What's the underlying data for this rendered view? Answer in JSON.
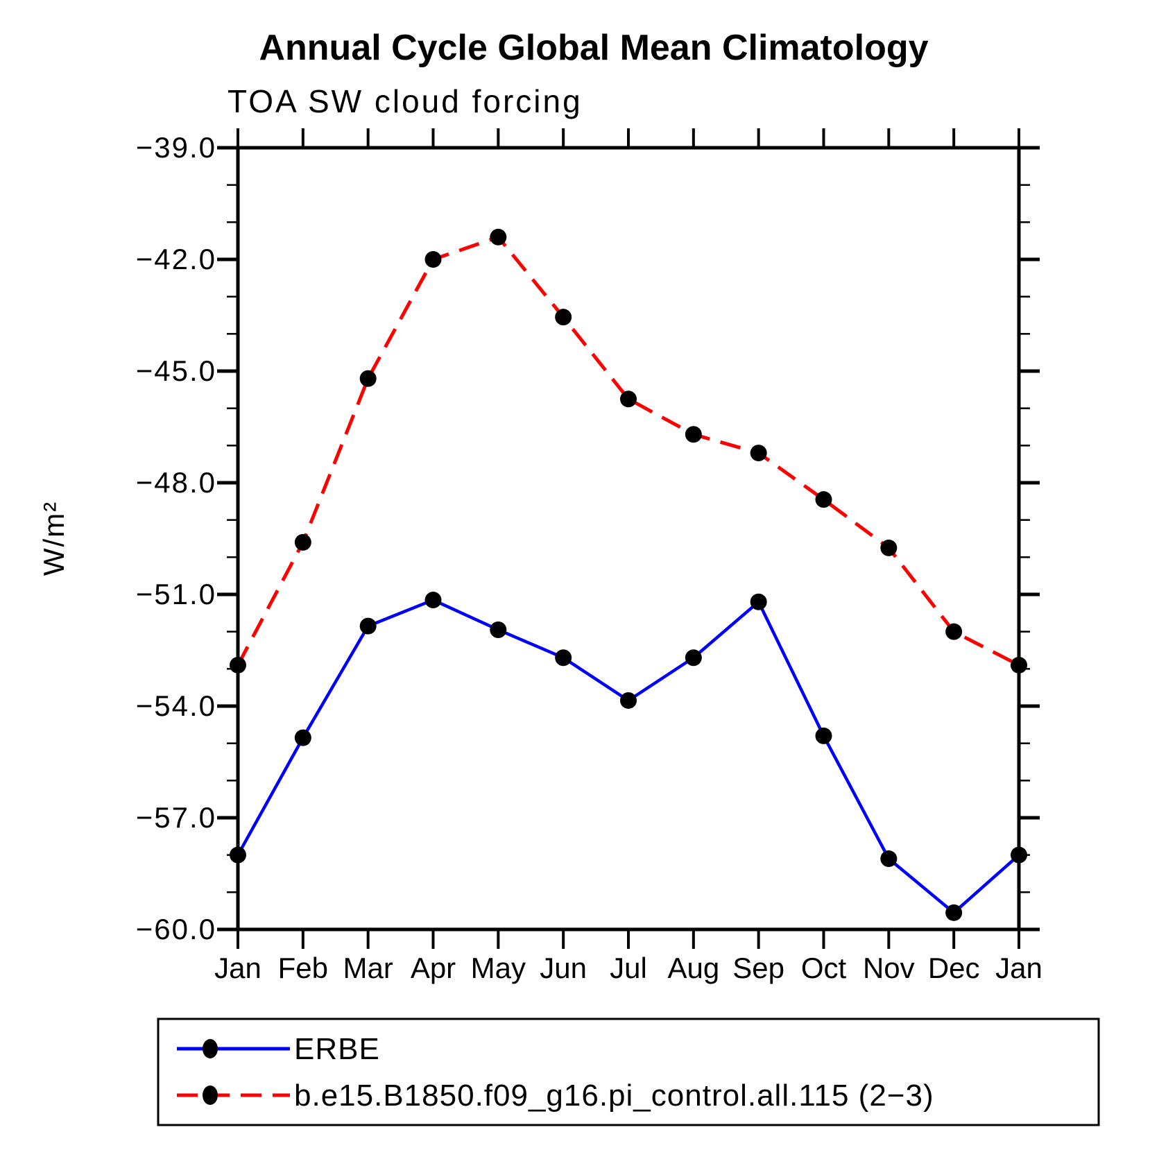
{
  "page": {
    "background": "#ffffff"
  },
  "header": {
    "title": "Annual Cycle Global Mean Climatology",
    "subtitle": "TOA SW cloud forcing"
  },
  "chart_data": {
    "type": "line",
    "title": "Annual Cycle Global Mean Climatology",
    "subtitle": "TOA SW cloud forcing",
    "xlabel": "",
    "ylabel": "W/m²",
    "x_categories": [
      "Jan",
      "Feb",
      "Mar",
      "Apr",
      "May",
      "Jun",
      "Jul",
      "Aug",
      "Sep",
      "Oct",
      "Nov",
      "Dec",
      "Jan"
    ],
    "ylim": [
      -60.0,
      -39.0
    ],
    "y_major_tick_step": 3.0,
    "y_minor_tick_step": 1.0,
    "y_major_ticks": [
      -39.0,
      -42.0,
      -45.0,
      -48.0,
      -51.0,
      -54.0,
      -57.0,
      -60.0
    ],
    "y_tick_labels": [
      "−39.0",
      "−42.0",
      "−45.0",
      "−48.0",
      "−51.0",
      "−54.0",
      "−57.0",
      "−60.0"
    ],
    "grid": false,
    "axis_color": "#000000",
    "marker_color": "#000000",
    "series": [
      {
        "name": "ERBE",
        "color": "#0000ff",
        "line_style": "solid",
        "marker": "filled-circle",
        "values": [
          -58.0,
          -54.85,
          -51.85,
          -51.15,
          -51.95,
          -52.7,
          -53.85,
          -52.7,
          -51.2,
          -54.8,
          -58.1,
          -59.55,
          -58.0
        ]
      },
      {
        "name": "b.e15.B1850.f09_g16.pi_control.all.115 (2−3)",
        "color": "#ff0000",
        "line_style": "dashed",
        "marker": "filled-circle",
        "values": [
          -52.9,
          -49.6,
          -45.2,
          -42.0,
          -41.4,
          -43.55,
          -45.75,
          -46.7,
          -47.2,
          -48.45,
          -49.75,
          -52.0,
          -52.9
        ]
      }
    ],
    "legend_position": "bottom-left-box"
  },
  "legend": {
    "entries": [
      {
        "label": "ERBE"
      },
      {
        "label": "b.e15.B1850.f09_g16.pi_control.all.115 (2−3)"
      }
    ]
  }
}
